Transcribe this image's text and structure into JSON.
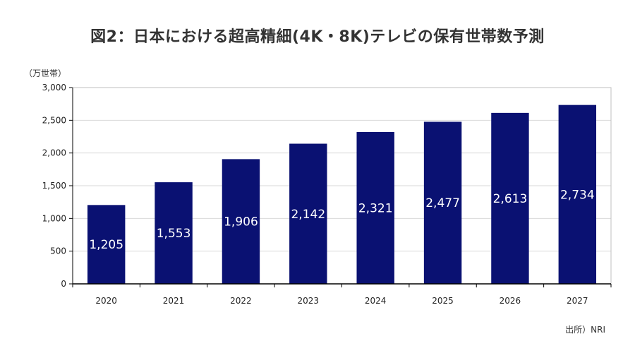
{
  "chart_data": {
    "type": "bar",
    "title": "図2：日本における超高精細(4K・8K)テレビの保有世帯数予測",
    "ylabel": "（万世帯）",
    "xlabel": "",
    "categories": [
      "2020",
      "2021",
      "2022",
      "2023",
      "2024",
      "2025",
      "2026",
      "2027"
    ],
    "values": [
      1205,
      1553,
      1906,
      2142,
      2321,
      2477,
      2613,
      2734
    ],
    "data_labels": [
      "1,205",
      "1,553",
      "1,906",
      "2,142",
      "2,321",
      "2,477",
      "2,613",
      "2,734"
    ],
    "ylim": [
      0,
      3000
    ],
    "yticks": [
      0,
      500,
      1000,
      1500,
      2000,
      2500,
      3000
    ],
    "ytick_labels": [
      "0",
      "500",
      "1,000",
      "1,500",
      "2,000",
      "2,500",
      "3,000"
    ],
    "grid": true,
    "bar_color": "#0a1172",
    "grid_color": "#d9d9d9",
    "source": "出所）NRI"
  }
}
